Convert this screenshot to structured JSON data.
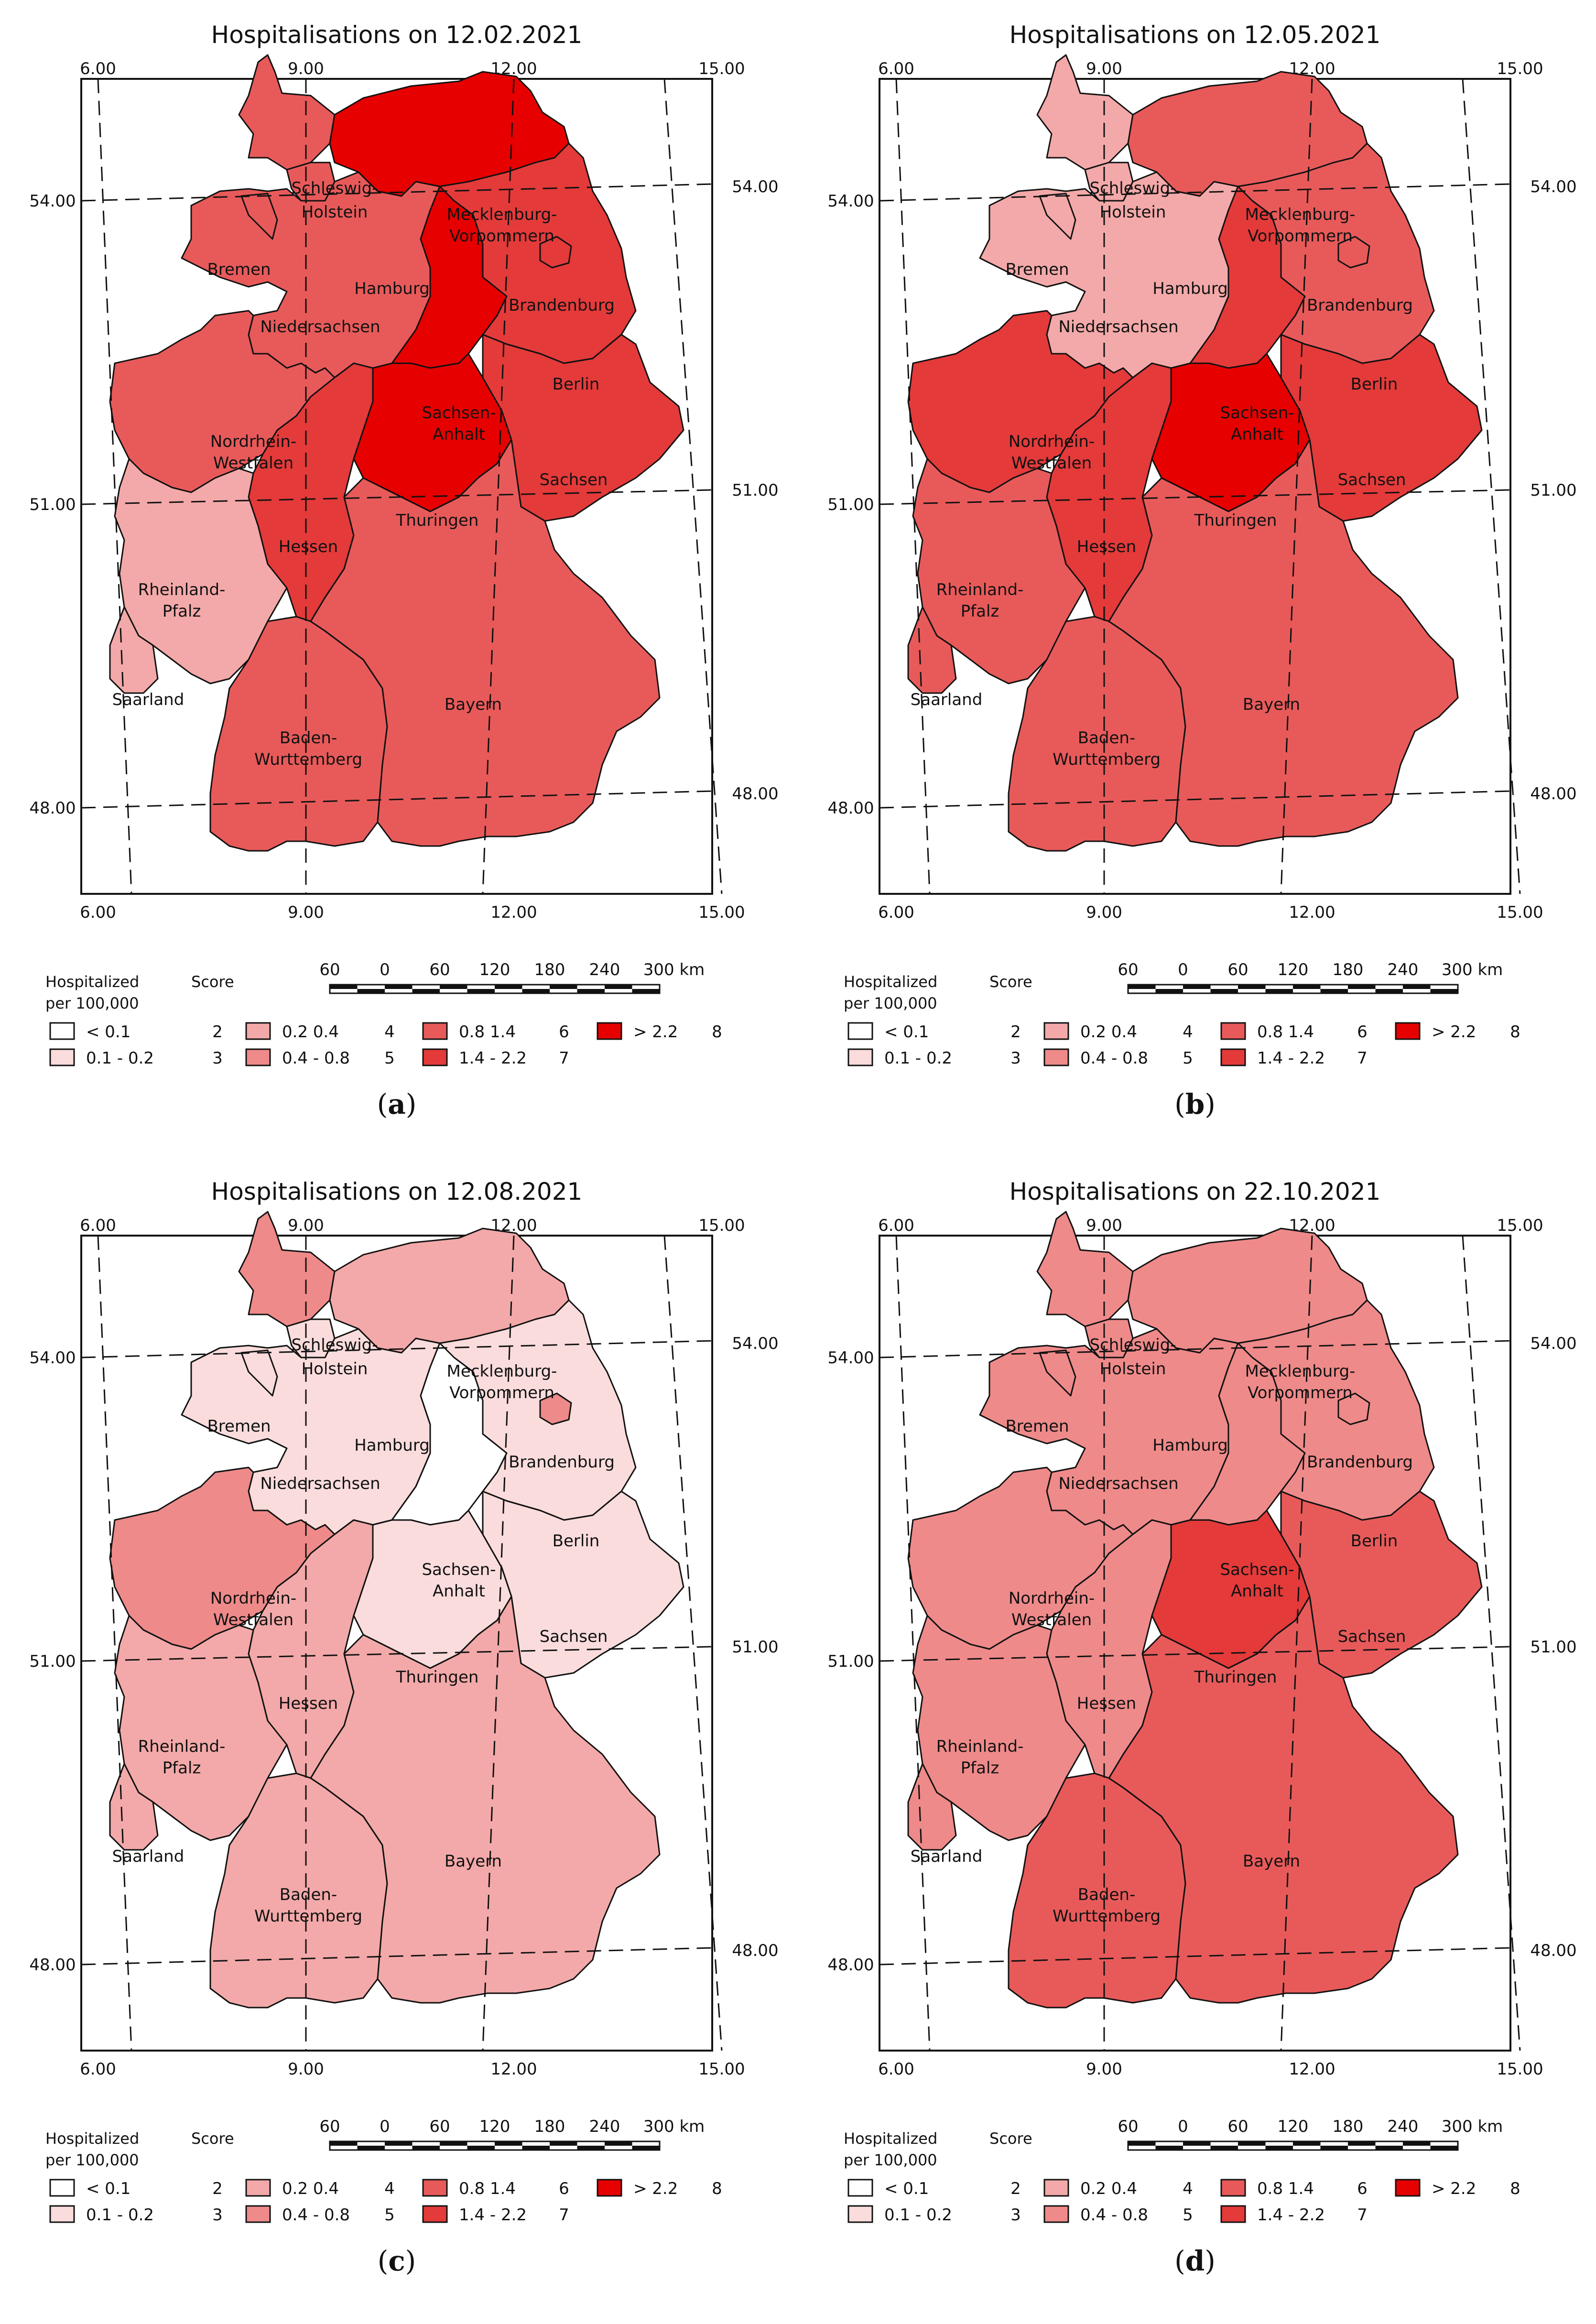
{
  "colors": {
    "score2": "#ffffff",
    "score3": "#fadcdc",
    "score4": "#f3a9a9",
    "score5": "#ef8a8a",
    "score6": "#e85a5a",
    "score7": "#e43a3a",
    "score8": "#e60000",
    "border": "#111111"
  },
  "common": {
    "lon_labels": [
      "6.00",
      "9.00",
      "12.00",
      "15.00"
    ],
    "lat_labels": [
      "54.00",
      "51.00",
      "48.00"
    ],
    "scalebar": {
      "ticks": [
        "60",
        "0",
        "60",
        "120",
        "180",
        "240",
        "300 km"
      ]
    },
    "legend": {
      "title_line1": "Hospitalized",
      "title_line2": "per 100,000",
      "score_header": "Score",
      "items": [
        {
          "range": "< 0.1",
          "score": "2"
        },
        {
          "range": "0.1 - 0.2",
          "score": "3"
        },
        {
          "range": "0.2 0.4",
          "score": "4"
        },
        {
          "range": "0.4 - 0.8",
          "score": "5"
        },
        {
          "range": "0.8 1.4",
          "score": "6"
        },
        {
          "range": "1.4 - 2.2",
          "score": "7"
        },
        {
          "range": "> 2.2",
          "score": "8"
        }
      ]
    },
    "state_labels": {
      "sh1": "Schleswig-",
      "sh2": "Holstein",
      "mv1": "Mecklenburg-",
      "mv2": "Vorpommern",
      "hb": "Bremen",
      "hh": "Hamburg",
      "ni": "Niedersachsen",
      "bb": "Brandenburg",
      "be": "Berlin",
      "st1": "Sachsen-",
      "st2": "Anhalt",
      "nw1": "Nordrhein-",
      "nw2": "Westfalen",
      "sn": "Sachsen",
      "th": "Thuringen",
      "he": "Hessen",
      "rp1": "Rheinland-",
      "rp2": "Pfalz",
      "sl": "Saarland",
      "bw1": "Baden-",
      "bw2": "Wurttemberg",
      "by": "Bayern"
    }
  },
  "panels": [
    {
      "letter": "a",
      "title": "Hospitalisations on 12.02.2021",
      "scores": {
        "SH": 6,
        "HH": 6,
        "MV": 8,
        "NI": 6,
        "HB": 6,
        "BB": 7,
        "BE": 7,
        "ST": 8,
        "NW": 6,
        "HE": 7,
        "TH": 8,
        "SN": 7,
        "RP": 4,
        "SL": 4,
        "BW": 6,
        "BY": 6
      }
    },
    {
      "letter": "b",
      "title": "Hospitalisations on 12.05.2021",
      "scores": {
        "SH": 4,
        "HH": 4,
        "MV": 6,
        "NI": 4,
        "HB": 4,
        "BB": 6,
        "BE": 6,
        "ST": 7,
        "NW": 7,
        "HE": 7,
        "TH": 8,
        "SN": 7,
        "RP": 6,
        "SL": 6,
        "BW": 6,
        "BY": 6
      }
    },
    {
      "letter": "c",
      "title": "Hospitalisations on 12.08.2021",
      "scores": {
        "SH": 5,
        "HH": 3,
        "MV": 4,
        "NI": 3,
        "HB": 3,
        "BB": 3,
        "BE": 5,
        "ST": 2,
        "NW": 5,
        "HE": 4,
        "TH": 3,
        "SN": 3,
        "RP": 4,
        "SL": 4,
        "BW": 4,
        "BY": 4
      }
    },
    {
      "letter": "d",
      "title": "Hospitalisations on 22.10.2021",
      "scores": {
        "SH": 5,
        "HH": 5,
        "MV": 5,
        "NI": 5,
        "HB": 5,
        "BB": 5,
        "BE": 5,
        "ST": 5,
        "NW": 5,
        "HE": 5,
        "TH": 7,
        "SN": 6,
        "RP": 5,
        "SL": 5,
        "BW": 6,
        "BY": 6
      }
    }
  ]
}
